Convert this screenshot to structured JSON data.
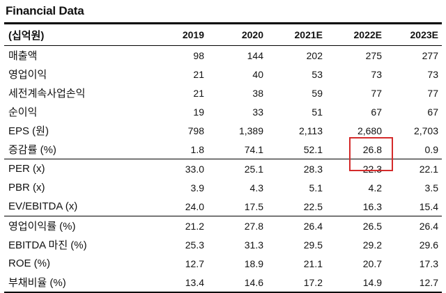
{
  "title": "Financial Data",
  "columns": [
    "(십억원)",
    "2019",
    "2020",
    "2021E",
    "2022E",
    "2023E"
  ],
  "groups": [
    [
      {
        "label": "매출액",
        "values": [
          "98",
          "144",
          "202",
          "275",
          "277"
        ]
      },
      {
        "label": "영업이익",
        "values": [
          "21",
          "40",
          "53",
          "73",
          "73"
        ]
      },
      {
        "label": "세전계속사업손익",
        "values": [
          "21",
          "38",
          "59",
          "77",
          "77"
        ]
      },
      {
        "label": "순이익",
        "values": [
          "19",
          "33",
          "51",
          "67",
          "67"
        ]
      },
      {
        "label": "EPS (원)",
        "values": [
          "798",
          "1,389",
          "2,113",
          "2,680",
          "2,703"
        ]
      },
      {
        "label": "증감률 (%)",
        "values": [
          "1.8",
          "74.1",
          "52.1",
          "26.8",
          "0.9"
        ]
      }
    ],
    [
      {
        "label": "PER (x)",
        "values": [
          "33.0",
          "25.1",
          "28.3",
          "22.3",
          "22.1"
        ]
      },
      {
        "label": "PBR (x)",
        "values": [
          "3.9",
          "4.3",
          "5.1",
          "4.2",
          "3.5"
        ]
      },
      {
        "label": "EV/EBITDA (x)",
        "values": [
          "24.0",
          "17.5",
          "22.5",
          "16.3",
          "15.4"
        ]
      }
    ],
    [
      {
        "label": "영업이익률 (%)",
        "values": [
          "21.2",
          "27.8",
          "26.4",
          "26.5",
          "26.4"
        ]
      },
      {
        "label": "EBITDA 마진 (%)",
        "values": [
          "25.3",
          "31.3",
          "29.5",
          "29.2",
          "29.6"
        ]
      },
      {
        "label": "ROE (%)",
        "values": [
          "12.7",
          "18.9",
          "21.1",
          "20.7",
          "17.3"
        ]
      },
      {
        "label": "부채비율 (%)",
        "values": [
          "13.4",
          "14.6",
          "17.2",
          "14.9",
          "12.7"
        ]
      }
    ]
  ],
  "highlight_color": "#d42a2a"
}
